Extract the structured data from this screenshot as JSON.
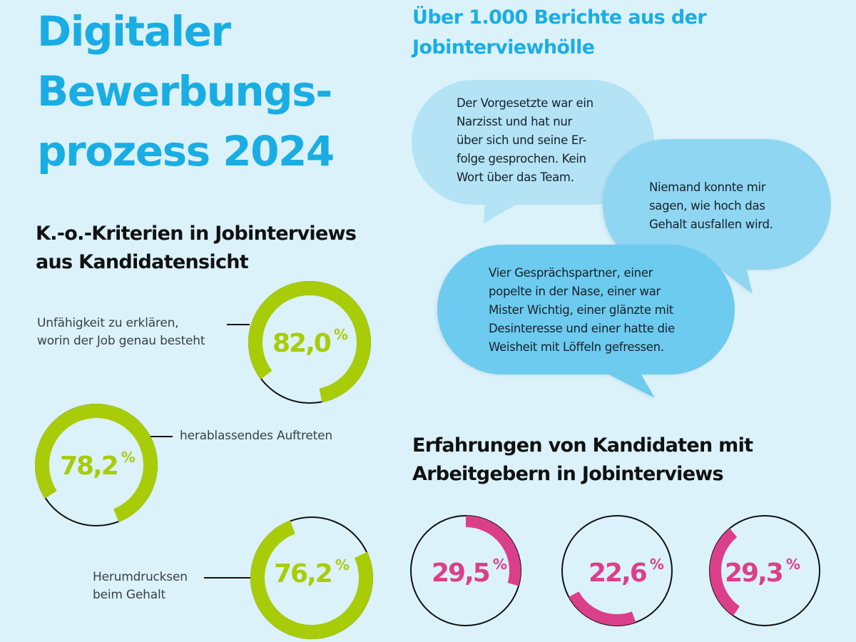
{
  "header": {
    "title_lines": [
      "Digitaler",
      "Bewerbungs-",
      "prozess 2024"
    ],
    "subtitle_lines": [
      "Über 1.000 Berichte aus der",
      "Jobinterviewhölle"
    ]
  },
  "colors": {
    "background": "#dbf2fb",
    "title": "#1aade4",
    "ring_green": "#a8cc08",
    "ring_pink": "#dc3f8a",
    "ring_track": "#111111",
    "bubble_1": "#b3e3f5",
    "bubble_2": "#8fd6f2",
    "bubble_3": "#6ccbee"
  },
  "quotes": [
    {
      "lines": [
        "Der Vorgesetzte war ein",
        "Narzisst und hat nur",
        "über sich und seine Er-",
        "folge gesprochen. Kein",
        "Wort über das Team."
      ]
    },
    {
      "lines": [
        "Niemand konnte mir",
        "sagen, wie hoch das",
        "Gehalt ausfallen wird."
      ]
    },
    {
      "lines": [
        "Vier Gesprächspartner, einer",
        "popelte in der Nase, einer war",
        "Mister Wichtig, einer glänzte mit",
        "Desinteresse und einer hatte die",
        "Weisheit mit Löffeln gefressen."
      ]
    }
  ],
  "ko_section": {
    "title_lines": [
      "K.-o.-Kriterien in Jobinterviews",
      "aus Kandidatensicht"
    ]
  },
  "experience_section": {
    "title_lines": [
      "Erfahrungen von Kandidaten mit",
      "Arbeitgebern in Jobinterviews"
    ]
  },
  "chart_data": [
    {
      "type": "pie",
      "title": "K.-o.-Kriterien in Jobinterviews aus Kandidatensicht",
      "style": "donut-gauge",
      "items": [
        {
          "label": "Unfähigkeit zu erklären, worin der Job genau besteht",
          "label_lines": [
            "Unfähigkeit zu erklären,",
            "worin der Job genau besteht"
          ],
          "value": 82.0,
          "display": "82,0",
          "unit": "%"
        },
        {
          "label": "herablassendes Auftreten",
          "label_lines": [
            "herablassendes Auftreten"
          ],
          "value": 78.2,
          "display": "78,2",
          "unit": "%"
        },
        {
          "label": "Herumdrucksen beim Gehalt",
          "label_lines": [
            "Herumdrucksen",
            "beim Gehalt"
          ],
          "value": 76.2,
          "display": "76,2",
          "unit": "%"
        }
      ]
    },
    {
      "type": "pie",
      "title": "Erfahrungen von Kandidaten mit Arbeitgebern in Jobinterviews",
      "style": "donut-gauge",
      "items": [
        {
          "value": 29.5,
          "display": "29,5",
          "unit": "%"
        },
        {
          "value": 22.6,
          "display": "22,6",
          "unit": "%"
        },
        {
          "value": 29.3,
          "display": "29,3",
          "unit": "%"
        }
      ]
    }
  ]
}
